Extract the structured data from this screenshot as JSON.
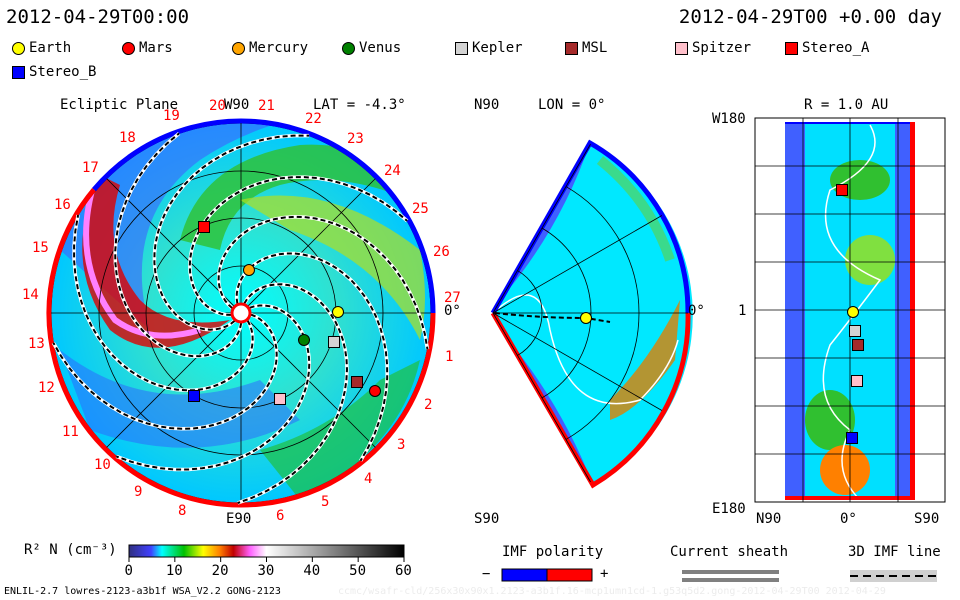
{
  "header": {
    "left_time": "2012-04-29T00:00",
    "right_time": "2012-04-29T00 +0.00 day"
  },
  "legend": [
    {
      "name": "Earth",
      "color": "#ffff00",
      "shape": "circle"
    },
    {
      "name": "Mars",
      "color": "#ff0000",
      "shape": "circle"
    },
    {
      "name": "Mercury",
      "color": "#ffa500",
      "shape": "circle"
    },
    {
      "name": "Venus",
      "color": "#008000",
      "shape": "circle"
    },
    {
      "name": "Kepler",
      "color": "#d3d3d3",
      "shape": "square"
    },
    {
      "name": "MSL",
      "color": "#a52a2a",
      "shape": "square"
    },
    {
      "name": "Spitzer",
      "color": "#ffc0cb",
      "shape": "square"
    },
    {
      "name": "Stereo_A",
      "color": "#ff0000",
      "shape": "square"
    },
    {
      "name": "Stereo_B",
      "color": "#0000ff",
      "shape": "square"
    }
  ],
  "ecliptic": {
    "title": "Ecliptic Plane",
    "top_label": "W90",
    "bottom_label": "E90",
    "right_label": "0°",
    "lat_label": "LAT = -4.3°",
    "day_labels": [
      "1",
      "2",
      "3",
      "4",
      "5",
      "6",
      "8",
      "9",
      "10",
      "11",
      "12",
      "13",
      "14",
      "15",
      "16",
      "17",
      "18",
      "19",
      "20",
      "21",
      "22",
      "23",
      "24",
      "25",
      "26",
      "27"
    ]
  },
  "meridional": {
    "top_label": "N90",
    "bottom_label": "S90",
    "lon_label": "LON = 0°",
    "right_label": "0°"
  },
  "radial": {
    "r_label": "R = 1.0 AU",
    "top_label": "W180",
    "bottom_label": "E180",
    "mid_label": "1",
    "x_labels": [
      "N90",
      "0°",
      "S90"
    ]
  },
  "colorbar": {
    "label": "R² N (cm⁻³)",
    "ticks": [
      "0",
      "10",
      "20",
      "30",
      "40",
      "50",
      "60"
    ],
    "min": 0,
    "max": 60
  },
  "imf": {
    "title": "IMF polarity",
    "minus": "−",
    "plus": "+",
    "neg_color": "#0000ff",
    "pos_color": "#ff0000"
  },
  "sheath": {
    "title": "Current sheath"
  },
  "imf_line": {
    "title": "3D IMF line"
  },
  "footer": {
    "model": "ENLIL-2.7 lowres-2123-a3b1f WSA_V2.2 GONG-2123",
    "watermark": "ccmc/wsafr-cld/256x30x90x1.2123-a3b1f.16-mcp1umn1cd-1.g53q5d2.gong-2012-04-29T00   2012-04-29"
  },
  "chart_data": {
    "type": "heatmap",
    "variable": "R² N (cm⁻³)",
    "colorbar_range": [
      0,
      60
    ],
    "colorbar_ticks": [
      0,
      10,
      20,
      30,
      40,
      50,
      60
    ],
    "radial_distance_au": 1.0,
    "latitude_deg": -4.3,
    "longitude_deg": 0
  }
}
